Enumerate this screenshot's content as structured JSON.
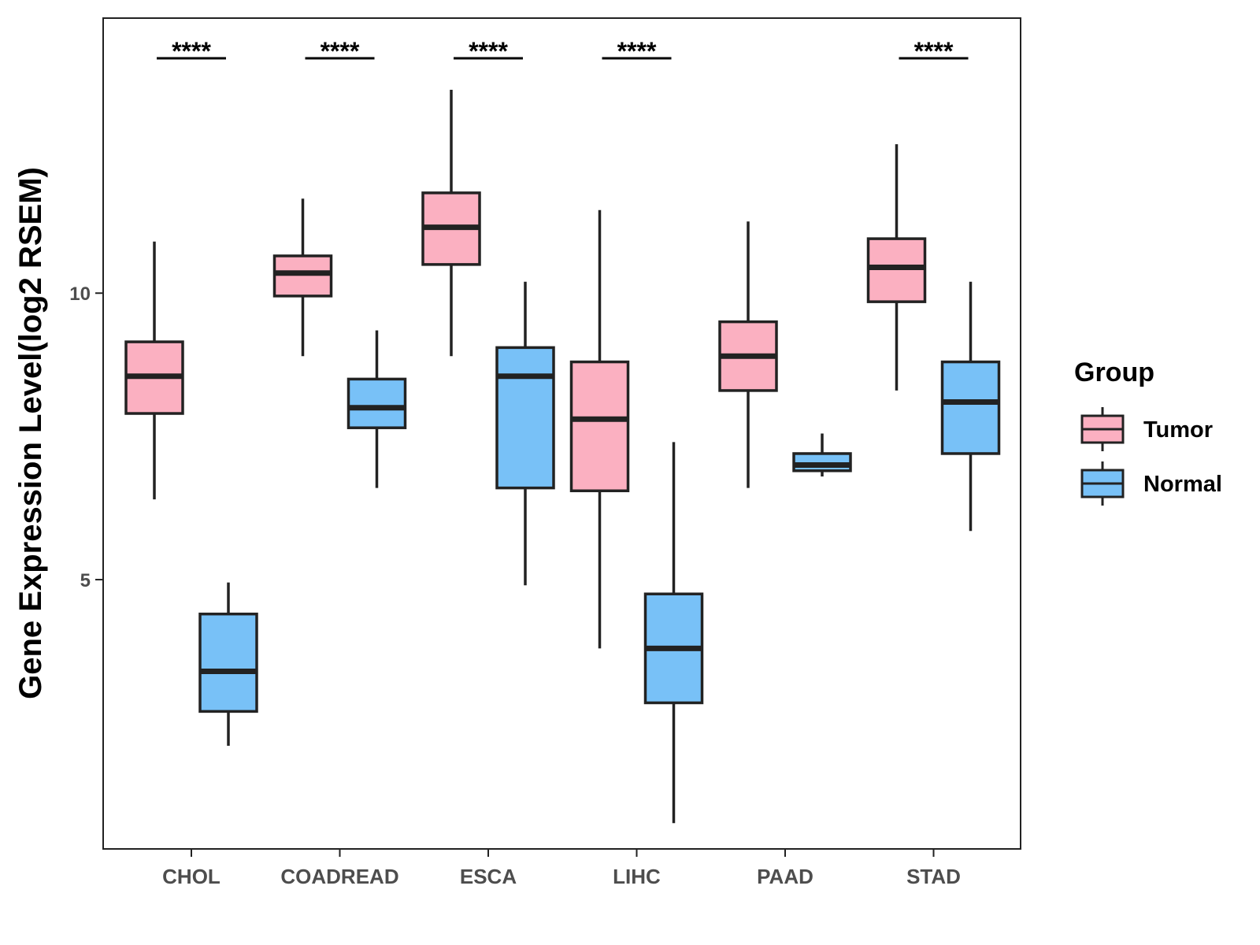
{
  "chart_data": {
    "type": "boxplot",
    "title": "",
    "xlabel": "",
    "ylabel": "Gene Expression Level(log2 RSEM)",
    "ylim": [
      0.3,
      14.8
    ],
    "yticks": [
      5,
      10
    ],
    "categories": [
      "CHOL",
      "COADREAD",
      "ESCA",
      "LIHC",
      "PAAD",
      "STAD"
    ],
    "legend": {
      "title": "Group",
      "position": "right",
      "entries": [
        {
          "name": "Tumor",
          "color": "#fbb0c1"
        },
        {
          "name": "Normal",
          "color": "#78c1f7"
        }
      ]
    },
    "series": [
      {
        "name": "Tumor",
        "color": "#fbb0c1",
        "boxes": [
          {
            "category": "CHOL",
            "min": 6.4,
            "q1": 7.9,
            "median": 8.55,
            "q3": 9.15,
            "max": 10.9
          },
          {
            "category": "COADREAD",
            "min": 8.9,
            "q1": 9.95,
            "median": 10.35,
            "q3": 10.65,
            "max": 11.65
          },
          {
            "category": "ESCA",
            "min": 8.9,
            "q1": 10.5,
            "median": 11.15,
            "q3": 11.75,
            "max": 13.55
          },
          {
            "category": "LIHC",
            "min": 3.8,
            "q1": 6.55,
            "median": 7.8,
            "q3": 8.8,
            "max": 11.45
          },
          {
            "category": "PAAD",
            "min": 6.6,
            "q1": 8.3,
            "median": 8.9,
            "q3": 9.5,
            "max": 11.25
          },
          {
            "category": "STAD",
            "min": 8.3,
            "q1": 9.85,
            "median": 10.45,
            "q3": 10.95,
            "max": 12.6
          }
        ]
      },
      {
        "name": "Normal",
        "color": "#78c1f7",
        "boxes": [
          {
            "category": "CHOL",
            "min": 2.1,
            "q1": 2.7,
            "median": 3.4,
            "q3": 4.4,
            "max": 4.95
          },
          {
            "category": "COADREAD",
            "min": 6.6,
            "q1": 7.65,
            "median": 8.0,
            "q3": 8.5,
            "max": 9.35
          },
          {
            "category": "ESCA",
            "min": 4.9,
            "q1": 6.6,
            "median": 8.55,
            "q3": 9.05,
            "max": 10.2
          },
          {
            "category": "LIHC",
            "min": 0.75,
            "q1": 2.85,
            "median": 3.8,
            "q3": 4.75,
            "max": 7.4
          },
          {
            "category": "PAAD",
            "min": 6.8,
            "q1": 6.9,
            "median": 7.0,
            "q3": 7.2,
            "max": 7.55
          },
          {
            "category": "STAD",
            "min": 5.85,
            "q1": 7.2,
            "median": 8.1,
            "q3": 8.8,
            "max": 10.2
          }
        ]
      }
    ],
    "significance": [
      {
        "category": "CHOL",
        "label": "****"
      },
      {
        "category": "COADREAD",
        "label": "****"
      },
      {
        "category": "ESCA",
        "label": "****"
      },
      {
        "category": "LIHC",
        "label": "****"
      },
      {
        "category": "STAD",
        "label": "****"
      }
    ]
  }
}
